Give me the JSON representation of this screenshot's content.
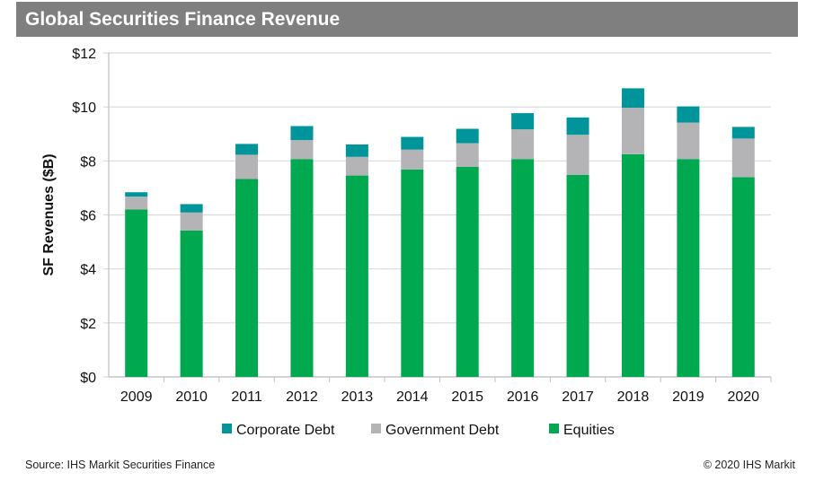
{
  "header": {
    "title": "Global Securities Finance Revenue"
  },
  "footer": {
    "source": "Source: IHS Markit Securities Finance",
    "copyright": "© 2020 IHS Markit"
  },
  "chart_data": {
    "type": "bar",
    "stacked": true,
    "title": "Global Securities Finance Revenue",
    "xlabel": "",
    "ylabel": "SF Revenues ($B)",
    "ylim": [
      0,
      12
    ],
    "yticks": [
      0,
      2,
      4,
      6,
      8,
      10,
      12
    ],
    "ytick_labels": [
      "$0",
      "$2",
      "$4",
      "$6",
      "$8",
      "$10",
      "$12"
    ],
    "grid": true,
    "legend_position": "bottom",
    "categories": [
      "2009",
      "2010",
      "2011",
      "2012",
      "2013",
      "2014",
      "2015",
      "2016",
      "2017",
      "2018",
      "2019",
      "2020"
    ],
    "series": [
      {
        "name": "Equities",
        "color": "#00a94f",
        "values": [
          6.2,
          5.42,
          7.33,
          8.07,
          7.46,
          7.68,
          7.78,
          8.07,
          7.48,
          8.25,
          8.07,
          7.4
        ]
      },
      {
        "name": "Government Debt",
        "color": "#b4b4b6",
        "values": [
          0.48,
          0.67,
          0.9,
          0.7,
          0.69,
          0.74,
          0.88,
          1.1,
          1.49,
          1.72,
          1.35,
          1.43
        ]
      },
      {
        "name": "Corporate Debt",
        "color": "#00959a",
        "values": [
          0.16,
          0.31,
          0.4,
          0.52,
          0.46,
          0.47,
          0.53,
          0.6,
          0.64,
          0.72,
          0.6,
          0.43
        ]
      }
    ],
    "legend_order": [
      "Corporate Debt",
      "Government Debt",
      "Equities"
    ]
  }
}
